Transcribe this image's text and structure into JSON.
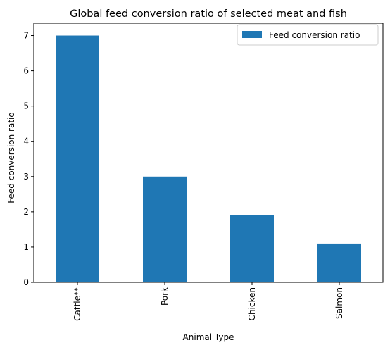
{
  "chart_data": {
    "type": "bar",
    "title": "Global feed conversion ratio of selected meat and fish",
    "xlabel": "Animal Type",
    "ylabel": "Feed conversion ratio",
    "categories": [
      "Cattle**",
      "Pork",
      "Chicken",
      "Salmon"
    ],
    "series": [
      {
        "name": "Feed conversion ratio",
        "values": [
          7.0,
          3.0,
          1.9,
          1.1
        ],
        "color": "#1f77b4"
      }
    ],
    "ylim": [
      0,
      7.35
    ],
    "yticks": [
      0,
      1,
      2,
      3,
      4,
      5,
      6,
      7
    ],
    "grid": false,
    "legend_position": "top-right",
    "x_tick_rotation": "vertical"
  }
}
